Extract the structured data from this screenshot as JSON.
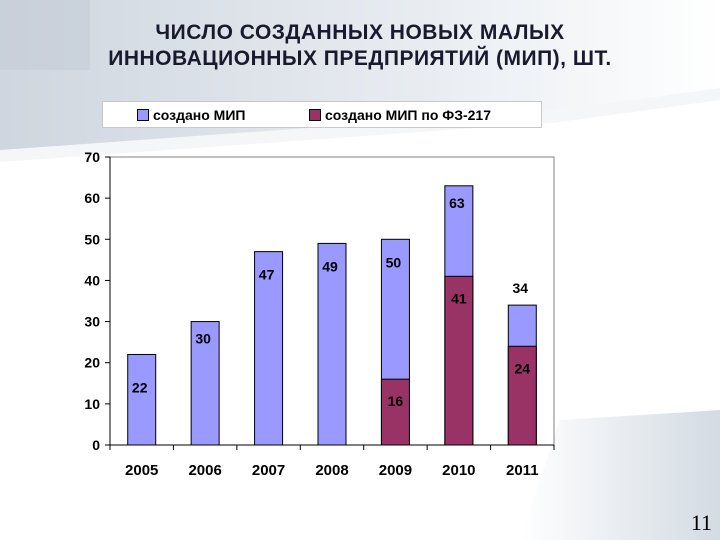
{
  "slide": {
    "title_line1": "ЧИСЛО СОЗДАННЫХ НОВЫХ МАЛЫХ",
    "title_line2": "ИННОВАЦИОННЫХ ПРЕДПРИЯТИЙ (МИП), ШТ.",
    "page_number": "11"
  },
  "chart_data": {
    "type": "bar",
    "title": "ЧИСЛО СОЗДАННЫХ НОВЫХ МАЛЫХ ИННОВАЦИОННЫХ ПРЕДПРИЯТИЙ (МИП), ШТ.",
    "xlabel": "",
    "ylabel": "",
    "categories": [
      "2005",
      "2006",
      "2007",
      "2008",
      "2009",
      "2010",
      "2011"
    ],
    "series": [
      {
        "name": "создано МИП",
        "values": [
          22,
          30,
          47,
          49,
          50,
          63,
          34
        ],
        "color": "#9999ff"
      },
      {
        "name": "создано МИП по ФЗ-217",
        "values": [
          null,
          null,
          null,
          null,
          16,
          41,
          24
        ],
        "color": "#993366"
      }
    ],
    "ylim": [
      0,
      70
    ],
    "yticks": [
      0,
      10,
      20,
      30,
      40,
      50,
      60,
      70
    ],
    "grid": false,
    "legend": "top",
    "overlap": true
  }
}
